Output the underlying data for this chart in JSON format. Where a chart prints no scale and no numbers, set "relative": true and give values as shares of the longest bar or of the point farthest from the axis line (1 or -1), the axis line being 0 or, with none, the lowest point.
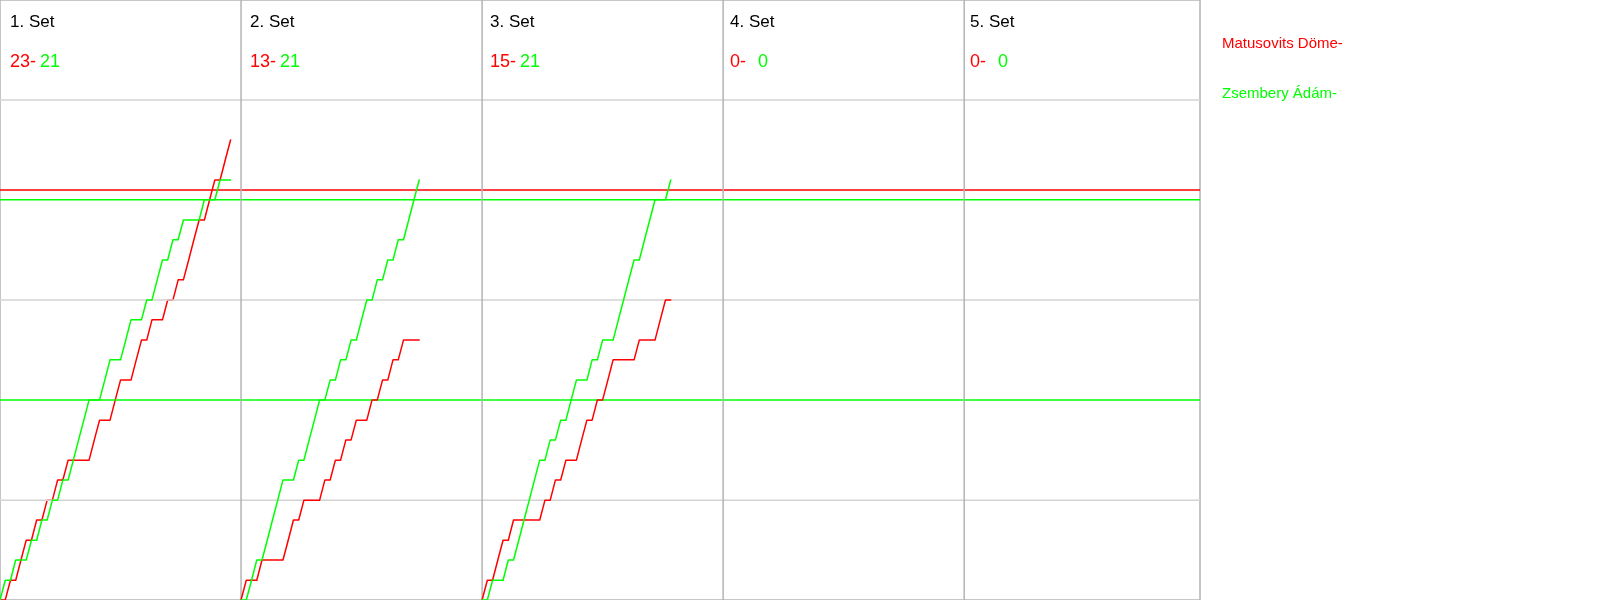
{
  "chart_data": {
    "type": "line",
    "relative": true,
    "annotations": [
      "1. Set",
      "23-",
      "21",
      "2. Set",
      "13-",
      "21",
      "3. Set",
      "15-",
      "21",
      "4. Set",
      "0-",
      "0",
      "5. Set",
      "0-",
      "0"
    ],
    "categories": [
      null,
      null,
      null,
      null,
      null,
      null,
      null,
      null,
      null,
      null,
      null,
      null,
      null,
      null,
      null,
      null,
      null,
      null,
      null,
      null,
      null,
      null,
      null,
      null,
      null,
      null,
      null,
      null,
      null,
      null,
      null,
      null,
      null,
      null,
      null,
      null,
      null,
      null,
      null,
      null,
      null,
      null,
      null,
      null,
      null,
      null,
      null,
      null,
      null,
      null,
      null,
      null,
      null,
      null,
      null,
      null,
      null,
      null,
      null,
      null,
      null,
      null,
      null,
      null,
      null,
      null,
      null,
      null,
      null,
      null,
      null,
      null,
      null,
      null,
      null,
      null,
      null,
      null,
      null,
      null,
      null,
      null,
      null,
      null,
      null,
      null,
      null,
      null,
      null,
      null,
      null,
      null,
      null,
      null,
      null,
      null,
      null,
      null,
      null,
      null,
      null,
      null,
      null,
      null,
      null,
      null,
      null,
      null,
      null,
      null,
      null,
      null,
      null,
      null,
      null,
      null,
      null,
      null,
      null,
      null,
      null,
      null,
      null,
      null,
      null,
      null,
      null,
      null,
      null,
      null,
      null,
      null,
      null,
      null,
      null,
      null,
      null,
      null,
      null,
      null,
      null,
      null,
      null,
      null,
      null,
      null,
      null,
      null,
      null,
      null,
      null,
      null,
      null,
      null,
      null,
      null,
      null,
      null,
      null,
      null,
      null,
      null,
      null,
      null,
      null,
      null,
      null,
      null,
      null,
      null,
      null,
      null,
      null,
      null,
      null,
      null,
      null,
      null,
      null,
      null,
      null,
      null,
      null,
      null,
      null,
      null,
      null,
      null,
      null,
      null,
      null,
      null,
      null,
      null,
      null,
      null,
      null,
      null,
      null,
      null,
      null,
      null,
      null,
      null,
      null,
      null,
      null,
      null,
      null,
      null,
      null,
      null,
      null,
      null,
      null,
      null,
      null,
      null,
      null,
      null,
      null,
      null,
      null,
      null,
      null,
      null,
      null,
      null,
      null,
      null
    ],
    "series": [
      {
        "name": "Matusovits Döme-",
        "color": "#ff0000",
        "values": [
          0,
          0,
          0.043,
          0.043,
          0.087,
          0.13,
          0.13,
          0.174,
          0.174,
          0.217,
          0.217,
          0.261,
          0.261,
          0.304,
          0.304,
          0.304,
          0.304,
          0.304,
          0.348,
          0.391,
          0.391,
          0.391,
          0.435,
          0.478,
          0.478,
          0.478,
          0.522,
          0.565,
          0.565,
          0.609,
          0.609,
          0.609,
          0.652,
          0.652,
          0.696,
          0.696,
          0.739,
          0.783,
          0.826,
          0.826,
          0.87,
          0.913,
          0.913,
          0.957,
          1,
          null,
          null,
          null,
          null,
          null,
          null,
          null,
          null,
          null,
          null,
          null,
          null,
          null,
          null,
          null,
          null,
          null,
          null,
          null,
          null,
          null,
          null,
          null,
          null,
          null,
          null,
          null,
          null,
          null,
          null,
          null,
          null,
          null,
          null,
          null,
          null,
          null,
          null,
          null,
          null,
          null,
          null,
          null,
          null,
          null,
          null,
          null,
          null,
          null,
          null,
          null,
          null,
          null,
          null,
          null,
          null,
          null,
          null,
          null,
          null,
          null,
          null,
          null,
          null,
          null,
          null,
          null,
          null,
          null,
          null,
          null,
          null,
          null,
          null,
          null,
          null,
          null,
          null,
          null,
          null,
          null,
          null,
          null,
          null,
          null,
          null,
          null,
          null,
          null,
          null,
          null,
          null,
          null,
          null,
          null,
          null,
          null,
          null,
          null,
          null,
          null,
          null,
          null,
          null,
          null,
          null,
          null,
          null,
          null,
          null,
          null,
          null,
          null,
          null,
          null,
          null,
          null,
          null,
          null,
          null,
          null,
          null,
          null,
          null,
          null,
          null,
          null,
          null,
          null,
          null,
          null,
          null,
          null,
          null,
          null,
          null,
          null,
          null,
          null,
          null,
          null,
          null,
          null,
          null,
          null,
          null,
          null,
          null,
          null,
          null,
          null,
          null,
          null,
          null,
          null,
          null,
          null,
          null,
          null,
          null,
          null,
          null,
          null,
          null,
          null,
          null,
          null,
          null,
          null,
          null,
          null,
          null,
          null,
          null,
          null,
          null,
          null,
          null,
          null,
          null,
          null,
          null,
          null,
          null,
          null
        ]
      },
      {
        "name": "Zsembery Ádám-",
        "color": "#00ff00",
        "values": [
          0,
          0.043,
          0.043,
          0.087,
          0.087,
          0.087,
          0.13,
          0.13,
          0.174,
          0.174,
          0.217,
          0.217,
          0.261,
          0.261,
          0.304,
          0.348,
          0.391,
          0.435,
          0.435,
          0.435,
          0.478,
          0.522,
          0.522,
          0.522,
          0.565,
          0.609,
          0.609,
          0.609,
          0.652,
          0.652,
          0.696,
          0.739,
          0.739,
          0.783,
          0.783,
          0.826,
          0.826,
          0.826,
          0.826,
          0.87,
          0.87,
          0.87,
          0.913,
          0.913,
          0.913,
          null,
          null,
          null,
          null,
          null,
          null,
          null,
          null,
          null,
          null,
          null,
          null,
          null,
          null,
          null,
          null,
          null,
          null,
          null,
          null,
          null,
          null,
          null,
          null,
          null,
          null,
          null,
          null,
          null,
          null,
          null,
          null,
          null,
          null,
          null,
          null,
          null,
          null,
          null,
          null,
          null,
          null,
          null,
          null,
          null,
          null,
          null,
          null,
          null,
          null,
          null,
          null,
          null,
          null,
          null,
          null,
          null,
          null,
          null,
          null,
          null,
          null,
          null,
          null,
          null,
          null,
          null,
          null,
          null,
          null,
          null,
          null,
          null,
          null,
          null,
          null,
          null,
          null,
          null,
          null,
          null,
          null,
          null,
          null,
          null,
          null,
          null,
          null,
          null,
          null,
          null,
          null,
          null,
          null,
          null,
          null,
          null,
          null,
          null,
          null,
          null,
          null,
          null,
          null,
          null,
          null,
          null,
          null,
          null,
          null,
          null,
          null,
          null,
          null,
          null,
          null,
          null,
          null,
          null,
          null,
          null,
          null,
          null,
          null,
          null,
          null,
          null,
          null,
          null,
          null,
          null,
          null,
          null,
          null,
          null,
          null,
          null,
          null,
          null,
          null,
          null,
          null,
          null,
          null,
          null,
          null,
          null,
          null,
          null,
          null,
          null,
          null,
          null,
          null,
          null,
          null,
          null,
          null,
          null,
          null,
          null,
          null,
          null,
          null,
          null,
          null,
          null,
          null,
          null,
          null,
          null,
          null,
          null,
          null,
          null,
          null,
          null,
          null,
          null,
          null,
          null,
          null,
          null,
          null,
          null
        ]
      },
      {
        "color": "#ff0000",
        "values": [
          null,
          null,
          null,
          null,
          null,
          null,
          null,
          null,
          null,
          null,
          null,
          null,
          null,
          null,
          null,
          null,
          null,
          null,
          null,
          null,
          null,
          null,
          null,
          null,
          null,
          null,
          null,
          null,
          null,
          null,
          null,
          null,
          null,
          null,
          null,
          null,
          null,
          null,
          null,
          null,
          null,
          null,
          null,
          null,
          null,
          null,
          0,
          0.043,
          0.043,
          0.043,
          0.087,
          0.087,
          0.087,
          0.087,
          0.087,
          0.13,
          0.174,
          0.174,
          0.217,
          0.217,
          0.217,
          0.217,
          0.261,
          0.261,
          0.304,
          0.304,
          0.348,
          0.348,
          0.391,
          0.391,
          0.391,
          0.435,
          0.435,
          0.478,
          0.478,
          0.522,
          0.522,
          0.565,
          0.565,
          0.565,
          0.565,
          null,
          null,
          null,
          null,
          null,
          null,
          null,
          null,
          null,
          null,
          null,
          null,
          null,
          null,
          null,
          null,
          null,
          null,
          null,
          null,
          null,
          null,
          null,
          null,
          null,
          null,
          null,
          null,
          null,
          null,
          null,
          null,
          null,
          null,
          null,
          null,
          null,
          null,
          null,
          null,
          null,
          null,
          null,
          null,
          null,
          null,
          null,
          null,
          null,
          null,
          null,
          null,
          null,
          null,
          null,
          null,
          null,
          null,
          null,
          null,
          null,
          null,
          null,
          null,
          null,
          null,
          null,
          null,
          null,
          null,
          null,
          null,
          null,
          null,
          null,
          null,
          null,
          null,
          null,
          null,
          null,
          null,
          null,
          null,
          null,
          null,
          null,
          null,
          null,
          null,
          null,
          null,
          null,
          null,
          null,
          null,
          null,
          null,
          null,
          null,
          null,
          null,
          null,
          null,
          null,
          null,
          null,
          null,
          null,
          null,
          null,
          null,
          null,
          null,
          null,
          null,
          null,
          null,
          null,
          null,
          null,
          null,
          null,
          null,
          null,
          null,
          null,
          null,
          null,
          null,
          null,
          null,
          null,
          null,
          null,
          null,
          null,
          null,
          null,
          null,
          null,
          null,
          null,
          null,
          null,
          null,
          null,
          null,
          null
        ]
      },
      {
        "color": "#00ff00",
        "values": [
          null,
          null,
          null,
          null,
          null,
          null,
          null,
          null,
          null,
          null,
          null,
          null,
          null,
          null,
          null,
          null,
          null,
          null,
          null,
          null,
          null,
          null,
          null,
          null,
          null,
          null,
          null,
          null,
          null,
          null,
          null,
          null,
          null,
          null,
          null,
          null,
          null,
          null,
          null,
          null,
          null,
          null,
          null,
          null,
          null,
          null,
          0,
          0,
          0.043,
          0.087,
          0.087,
          0.13,
          0.174,
          0.217,
          0.261,
          0.261,
          0.261,
          0.304,
          0.304,
          0.348,
          0.391,
          0.435,
          0.435,
          0.478,
          0.478,
          0.522,
          0.522,
          0.565,
          0.565,
          0.609,
          0.652,
          0.652,
          0.696,
          0.696,
          0.739,
          0.739,
          0.783,
          0.783,
          0.826,
          0.87,
          0.913,
          null,
          null,
          null,
          null,
          null,
          null,
          null,
          null,
          null,
          null,
          null,
          null,
          null,
          null,
          null,
          null,
          null,
          null,
          null,
          null,
          null,
          null,
          null,
          null,
          null,
          null,
          null,
          null,
          null,
          null,
          null,
          null,
          null,
          null,
          null,
          null,
          null,
          null,
          null,
          null,
          null,
          null,
          null,
          null,
          null,
          null,
          null,
          null,
          null,
          null,
          null,
          null,
          null,
          null,
          null,
          null,
          null,
          null,
          null,
          null,
          null,
          null,
          null,
          null,
          null,
          null,
          null,
          null,
          null,
          null,
          null,
          null,
          null,
          null,
          null,
          null,
          null,
          null,
          null,
          null,
          null,
          null,
          null,
          null,
          null,
          null,
          null,
          null,
          null,
          null,
          null,
          null,
          null,
          null,
          null,
          null,
          null,
          null,
          null,
          null,
          null,
          null,
          null,
          null,
          null,
          null,
          null,
          null,
          null,
          null,
          null,
          null,
          null,
          null,
          null,
          null,
          null,
          null,
          null,
          null,
          null,
          null,
          null,
          null,
          null,
          null,
          null,
          null,
          null,
          null,
          null,
          null,
          null,
          null,
          null,
          null,
          null,
          null,
          null,
          null,
          null,
          null,
          null,
          null,
          null,
          null,
          null,
          null,
          null
        ]
      },
      {
        "color": "#ff0000",
        "values": [
          null,
          null,
          null,
          null,
          null,
          null,
          null,
          null,
          null,
          null,
          null,
          null,
          null,
          null,
          null,
          null,
          null,
          null,
          null,
          null,
          null,
          null,
          null,
          null,
          null,
          null,
          null,
          null,
          null,
          null,
          null,
          null,
          null,
          null,
          null,
          null,
          null,
          null,
          null,
          null,
          null,
          null,
          null,
          null,
          null,
          null,
          null,
          null,
          null,
          null,
          null,
          null,
          null,
          null,
          null,
          null,
          null,
          null,
          null,
          null,
          null,
          null,
          null,
          null,
          null,
          null,
          null,
          null,
          null,
          null,
          null,
          null,
          null,
          null,
          null,
          null,
          null,
          null,
          null,
          null,
          null,
          null,
          null,
          null,
          null,
          null,
          null,
          null,
          null,
          null,
          null,
          null,
          0,
          0.043,
          0.043,
          0.087,
          0.13,
          0.13,
          0.174,
          0.174,
          0.174,
          0.174,
          0.174,
          0.174,
          0.217,
          0.217,
          0.261,
          0.261,
          0.304,
          0.304,
          0.304,
          0.348,
          0.391,
          0.391,
          0.435,
          0.435,
          0.478,
          0.522,
          0.522,
          0.522,
          0.522,
          0.522,
          0.565,
          0.565,
          0.565,
          0.565,
          0.609,
          0.652,
          0.652,
          null,
          null,
          null,
          null,
          null,
          null,
          null,
          null,
          null,
          null,
          null,
          null,
          null,
          null,
          null,
          null,
          null,
          null,
          null,
          null,
          null,
          null,
          null,
          null,
          null,
          null,
          null,
          null,
          null,
          null,
          null,
          null,
          null,
          null,
          null,
          null,
          null,
          null,
          null,
          null,
          null,
          null,
          null,
          null,
          null,
          null,
          null,
          null,
          null,
          null,
          null,
          null,
          null,
          null,
          null,
          null,
          null,
          null,
          null,
          null,
          null,
          null,
          null,
          null,
          null,
          null,
          null,
          null,
          null,
          null,
          null,
          null,
          null,
          null,
          null,
          null,
          null,
          null,
          null,
          null,
          null,
          null,
          null,
          null,
          null,
          null,
          null,
          null,
          null,
          null,
          null,
          null,
          null,
          null,
          null,
          null,
          null,
          null,
          null,
          null,
          null
        ]
      },
      {
        "color": "#00ff00",
        "values": [
          null,
          null,
          null,
          null,
          null,
          null,
          null,
          null,
          null,
          null,
          null,
          null,
          null,
          null,
          null,
          null,
          null,
          null,
          null,
          null,
          null,
          null,
          null,
          null,
          null,
          null,
          null,
          null,
          null,
          null,
          null,
          null,
          null,
          null,
          null,
          null,
          null,
          null,
          null,
          null,
          null,
          null,
          null,
          null,
          null,
          null,
          null,
          null,
          null,
          null,
          null,
          null,
          null,
          null,
          null,
          null,
          null,
          null,
          null,
          null,
          null,
          null,
          null,
          null,
          null,
          null,
          null,
          null,
          null,
          null,
          null,
          null,
          null,
          null,
          null,
          null,
          null,
          null,
          null,
          null,
          null,
          null,
          null,
          null,
          null,
          null,
          null,
          null,
          null,
          null,
          null,
          null,
          0,
          0,
          0.043,
          0.043,
          0.043,
          0.087,
          0.087,
          0.13,
          0.174,
          0.217,
          0.261,
          0.304,
          0.304,
          0.348,
          0.348,
          0.391,
          0.391,
          0.435,
          0.478,
          0.478,
          0.478,
          0.522,
          0.522,
          0.565,
          0.565,
          0.565,
          0.609,
          0.652,
          0.696,
          0.739,
          0.739,
          0.783,
          0.826,
          0.87,
          0.87,
          0.87,
          0.913,
          null,
          null,
          null,
          null,
          null,
          null,
          null,
          null,
          null,
          null,
          null,
          null,
          null,
          null,
          null,
          null,
          null,
          null,
          null,
          null,
          null,
          null,
          null,
          null,
          null,
          null,
          null,
          null,
          null,
          null,
          null,
          null,
          null,
          null,
          null,
          null,
          null,
          null,
          null,
          null,
          null,
          null,
          null,
          null,
          null,
          null,
          null,
          null,
          null,
          null,
          null,
          null,
          null,
          null,
          null,
          null,
          null,
          null,
          null,
          null,
          null,
          null,
          null,
          null,
          null,
          null,
          null,
          null,
          null,
          null,
          null,
          null,
          null,
          null,
          null,
          null,
          null,
          null,
          null,
          null,
          null,
          null,
          null,
          null,
          null,
          null,
          null,
          null,
          null,
          null,
          null,
          null,
          null,
          null,
          null,
          null,
          null,
          null,
          null,
          null,
          null
        ]
      }
    ],
    "ref_lines": [
      {
        "axis": "y",
        "value": 0.217,
        "color": "#d3d3d3"
      },
      {
        "axis": "y",
        "value": 0.652,
        "color": "#d3d3d3"
      },
      {
        "axis": "y",
        "value": 1.087,
        "color": "#d3d3d3"
      },
      {
        "axis": "y",
        "value": 0.435,
        "color": "#00ff00"
      },
      {
        "axis": "y",
        "value": 0.87,
        "color": "#00ff00"
      },
      {
        "axis": "y",
        "value": 0.891,
        "color": "#ff0000"
      }
    ]
  }
}
